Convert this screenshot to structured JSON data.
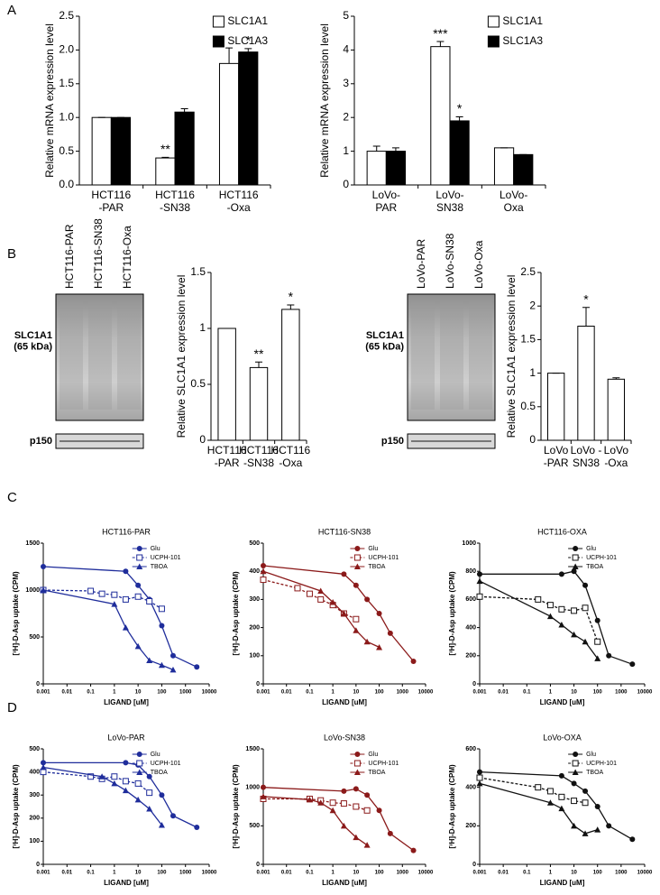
{
  "panels": [
    "A",
    "B",
    "C",
    "D"
  ],
  "blots": [
    {
      "lanes": [
        "HCT116-PAR",
        "HCT116-SN38",
        "HCT116-Oxa"
      ],
      "rows": [
        "SLC1A1\n(65 kDa)",
        "p150"
      ]
    },
    {
      "lanes": [
        "LoVo-PAR",
        "LoVo-SN38",
        "LoVo-Oxa"
      ],
      "rows": [
        "SLC1A1\n(65 kDa)",
        "p150"
      ]
    }
  ],
  "chart_data": [
    {
      "type": "bar",
      "ylabel": "Relative mRNA expression level",
      "categories": [
        "HCT116\n-PAR",
        "HCT116\n-SN38",
        "HCT116\n-Oxa"
      ],
      "series": [
        {
          "name": "SLC1A1",
          "color": "#ffffff",
          "values": [
            1.0,
            0.4,
            1.8
          ],
          "errors": [
            0,
            0.01,
            0.23
          ],
          "annotations": [
            null,
            "**",
            null
          ]
        },
        {
          "name": "SLC1A3",
          "color": "#000000",
          "values": [
            1.0,
            1.08,
            1.97
          ],
          "errors": [
            0,
            0.05,
            0.05
          ],
          "annotations": [
            null,
            null,
            "*"
          ]
        }
      ],
      "ylim": [
        0,
        2.5
      ],
      "yticks": [
        {
          "value": 0,
          "label": "0.0"
        },
        {
          "value": 0.5,
          "label": "0.5"
        },
        {
          "value": 1,
          "label": "1.0"
        },
        {
          "value": 1.5,
          "label": "1.5"
        },
        {
          "value": 2,
          "label": "2.0"
        },
        {
          "value": 2.5,
          "label": "2.5"
        }
      ]
    },
    {
      "type": "bar",
      "ylabel": "Relative mRNA expression level",
      "categories": [
        "LoVo-\nPAR",
        "LoVo-\nSN38",
        "LoVo-\nOxa"
      ],
      "series": [
        {
          "name": "SLC1A1",
          "color": "#ffffff",
          "values": [
            1.0,
            4.1,
            1.1
          ],
          "errors": [
            0.15,
            0.15,
            0
          ],
          "annotations": [
            null,
            "***",
            null
          ]
        },
        {
          "name": "SLC1A3",
          "color": "#000000",
          "values": [
            1.0,
            1.9,
            0.9
          ],
          "errors": [
            0.1,
            0.12,
            0
          ],
          "annotations": [
            null,
            "*",
            null
          ]
        }
      ],
      "ylim": [
        0,
        5
      ],
      "yticks": [
        0,
        1,
        2,
        3,
        4,
        5
      ]
    },
    {
      "type": "bar",
      "ylabel": "Relative SLC1A1 expression level",
      "categories": [
        "HCT116\n-PAR",
        "HCT116\n-SN38",
        "HCT116\n-Oxa"
      ],
      "color": "#ffffff",
      "values": [
        1,
        0.65,
        1.17
      ],
      "errors": [
        0,
        0.05,
        0.04
      ],
      "annotations": [
        null,
        "**",
        "*"
      ],
      "ylim": [
        0,
        1.5
      ],
      "yticks": [
        0,
        0.5,
        1,
        1.5
      ]
    },
    {
      "type": "bar",
      "ylabel": "Relative SLC1A1 expression level",
      "categories": [
        "LoVo\n-PAR",
        "LoVo -\nSN38",
        "LoVo\n-Oxa"
      ],
      "color": "#ffffff",
      "values": [
        1,
        1.7,
        0.91
      ],
      "errors": [
        0,
        0.28,
        0.02
      ],
      "annotations": [
        null,
        "*",
        null
      ],
      "ylim": [
        0,
        2.5
      ],
      "yticks": [
        0,
        0.5,
        1,
        1.5,
        2,
        2.5
      ]
    },
    {
      "type": "dose",
      "title": "HCT116-PAR",
      "xlabel": "LIGAND [uM]",
      "ylabel": "[³H]-D-Asp uptake (CPM)",
      "xlog": true,
      "series": [
        {
          "name": "Glu",
          "color": "#1f2d9b",
          "marker": "circle",
          "dashed": false,
          "x": [
            0.001,
            3,
            10,
            30,
            100,
            300,
            3000
          ],
          "values": [
            1250,
            1200,
            1050,
            900,
            620,
            300,
            180
          ]
        },
        {
          "name": "UCPH-101",
          "color": "#1f2d9b",
          "marker": "square-open",
          "dashed": true,
          "x": [
            0.001,
            0.1,
            0.3,
            1,
            3,
            10,
            30,
            100
          ],
          "values": [
            1000,
            990,
            960,
            950,
            900,
            930,
            880,
            800
          ]
        },
        {
          "name": "TBOA",
          "color": "#1f2d9b",
          "marker": "triangle",
          "dashed": false,
          "x": [
            0.001,
            1,
            3,
            10,
            30,
            100,
            300
          ],
          "values": [
            1000,
            850,
            600,
            400,
            250,
            200,
            150
          ]
        }
      ],
      "xlim": [
        0.001,
        10000
      ],
      "xticks": [
        0.001,
        0.01,
        0.1,
        1,
        10,
        100,
        1000,
        10000
      ],
      "ylim": [
        0,
        1500
      ],
      "yticks": [
        0,
        500,
        1000,
        1500
      ]
    },
    {
      "type": "dose",
      "title": "HCT116-SN38",
      "xlabel": "LIGAND [uM]",
      "ylabel": "[³H]-D-Asp uptake (CPM)",
      "xlog": true,
      "series": [
        {
          "name": "Glu",
          "color": "#8b1a1a",
          "marker": "circle",
          "dashed": false,
          "x": [
            0.001,
            3,
            10,
            30,
            100,
            300,
            3000
          ],
          "values": [
            420,
            390,
            350,
            300,
            250,
            180,
            80
          ]
        },
        {
          "name": "UCPH-101",
          "color": "#8b1a1a",
          "marker": "square-open",
          "dashed": true,
          "x": [
            0.001,
            0.03,
            0.1,
            0.3,
            1,
            3,
            10
          ],
          "values": [
            370,
            340,
            320,
            300,
            280,
            250,
            230
          ]
        },
        {
          "name": "TBOA",
          "color": "#8b1a1a",
          "marker": "triangle",
          "dashed": false,
          "x": [
            0.001,
            0.3,
            1,
            3,
            10,
            30,
            100
          ],
          "values": [
            400,
            330,
            290,
            250,
            190,
            150,
            130
          ]
        }
      ],
      "xlim": [
        0.001,
        10000
      ],
      "xticks": [
        0.001,
        0.01,
        0.1,
        1,
        10,
        100,
        1000,
        10000
      ],
      "ylim": [
        0,
        500
      ],
      "yticks": [
        0,
        100,
        200,
        300,
        400,
        500
      ]
    },
    {
      "type": "dose",
      "title": "HCT116-OXA",
      "xlabel": "LIGAND [uM]",
      "ylabel": "[³H]-D-Asp uptake (CPM)",
      "xlog": true,
      "series": [
        {
          "name": "Glu",
          "color": "#111111",
          "marker": "circle",
          "dashed": false,
          "x": [
            0.001,
            3,
            10,
            30,
            100,
            300,
            3000
          ],
          "values": [
            780,
            780,
            800,
            700,
            450,
            200,
            140
          ]
        },
        {
          "name": "UCPH-101",
          "color": "#111111",
          "marker": "square-open",
          "dashed": true,
          "x": [
            0.001,
            0.3,
            1,
            3,
            10,
            30,
            100
          ],
          "values": [
            620,
            600,
            560,
            530,
            520,
            540,
            300
          ]
        },
        {
          "name": "TBOA",
          "color": "#111111",
          "marker": "triangle",
          "dashed": false,
          "x": [
            0.001,
            1,
            3,
            10,
            30,
            100
          ],
          "values": [
            730,
            480,
            420,
            350,
            300,
            180
          ]
        }
      ],
      "xlim": [
        0.001,
        10000
      ],
      "xticks": [
        0.001,
        0.01,
        0.1,
        1,
        10,
        100,
        1000,
        10000
      ],
      "ylim": [
        0,
        1000
      ],
      "yticks": [
        0,
        200,
        400,
        600,
        800,
        1000
      ]
    },
    {
      "type": "dose",
      "title": "LoVo-PAR",
      "xlabel": "LIGAND [uM]",
      "ylabel": "[³H]-D-Asp uptake (CPM)",
      "xlog": true,
      "series": [
        {
          "name": "Glu",
          "color": "#1f2d9b",
          "marker": "circle",
          "dashed": false,
          "x": [
            0.001,
            3,
            10,
            30,
            100,
            300,
            3000
          ],
          "values": [
            440,
            440,
            430,
            380,
            300,
            210,
            160
          ]
        },
        {
          "name": "UCPH-101",
          "color": "#1f2d9b",
          "marker": "square-open",
          "dashed": true,
          "x": [
            0.001,
            0.1,
            0.3,
            1,
            3,
            10,
            30
          ],
          "values": [
            400,
            380,
            370,
            380,
            360,
            350,
            310
          ]
        },
        {
          "name": "TBOA",
          "color": "#1f2d9b",
          "marker": "triangle",
          "dashed": false,
          "x": [
            0.001,
            0.3,
            1,
            3,
            10,
            30,
            100
          ],
          "values": [
            420,
            380,
            350,
            320,
            280,
            240,
            170
          ]
        }
      ],
      "xlim": [
        0.001,
        10000
      ],
      "xticks": [
        0.001,
        0.01,
        0.1,
        1,
        10,
        100,
        1000,
        10000
      ],
      "ylim": [
        0,
        500
      ],
      "yticks": [
        0,
        100,
        200,
        300,
        400,
        500
      ]
    },
    {
      "type": "dose",
      "title": "LoVo-SN38",
      "xlabel": "LIGAND [uM]",
      "ylabel": "[³H]-D-Asp uptake (CPM)",
      "xlog": true,
      "series": [
        {
          "name": "Glu",
          "color": "#8b1a1a",
          "marker": "circle",
          "dashed": false,
          "x": [
            0.001,
            3,
            10,
            30,
            100,
            300,
            3000
          ],
          "values": [
            1000,
            950,
            980,
            900,
            700,
            400,
            180
          ]
        },
        {
          "name": "UCPH-101",
          "color": "#8b1a1a",
          "marker": "square-open",
          "dashed": true,
          "x": [
            0.001,
            0.1,
            0.3,
            1,
            3,
            10,
            30
          ],
          "values": [
            850,
            850,
            830,
            800,
            790,
            750,
            700
          ]
        },
        {
          "name": "TBOA",
          "color": "#8b1a1a",
          "marker": "triangle",
          "dashed": false,
          "x": [
            0.001,
            0.1,
            0.3,
            1,
            3,
            10,
            30
          ],
          "values": [
            880,
            840,
            800,
            700,
            500,
            350,
            250
          ]
        }
      ],
      "xlim": [
        0.001,
        10000
      ],
      "xticks": [
        0.001,
        0.01,
        0.1,
        1,
        10,
        100,
        1000,
        10000
      ],
      "ylim": [
        0,
        1500
      ],
      "yticks": [
        0,
        500,
        1000,
        1500
      ]
    },
    {
      "type": "dose",
      "title": "LoVo-OXA",
      "xlabel": "LIGAND [uM]",
      "ylabel": "[³H]-D-Asp uptake (CPM)",
      "xlog": true,
      "series": [
        {
          "name": "Glu",
          "color": "#111111",
          "marker": "circle",
          "dashed": false,
          "x": [
            0.001,
            3,
            10,
            30,
            100,
            300,
            3000
          ],
          "values": [
            480,
            460,
            420,
            380,
            300,
            200,
            130
          ]
        },
        {
          "name": "UCPH-101",
          "color": "#111111",
          "marker": "square-open",
          "dashed": true,
          "x": [
            0.001,
            0.3,
            1,
            3,
            10,
            30
          ],
          "values": [
            450,
            400,
            380,
            350,
            330,
            320
          ]
        },
        {
          "name": "TBOA",
          "color": "#111111",
          "marker": "triangle",
          "dashed": false,
          "x": [
            0.001,
            1,
            3,
            10,
            30,
            100
          ],
          "values": [
            420,
            320,
            290,
            200,
            160,
            180
          ]
        }
      ],
      "xlim": [
        0.001,
        10000
      ],
      "xticks": [
        0.001,
        0.01,
        0.1,
        1,
        10,
        100,
        1000,
        10000
      ],
      "ylim": [
        0,
        600
      ],
      "yticks": [
        0,
        200,
        400,
        600
      ]
    }
  ]
}
